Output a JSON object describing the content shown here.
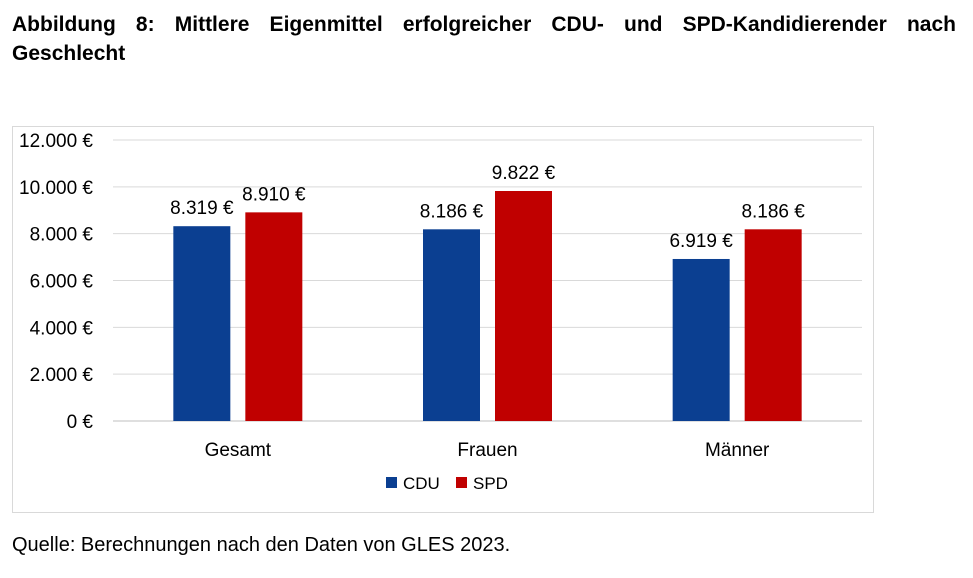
{
  "figure": {
    "title": "Abbildung 8: Mittlere Eigenmittel erfolgreicher CDU- und SPD-Kandidierender nach Geschlecht",
    "source": "Quelle: Berechnungen nach den Daten von GLES 2023."
  },
  "chart_data": {
    "type": "bar",
    "categories": [
      "Gesamt",
      "Frauen",
      "Männer"
    ],
    "series": [
      {
        "name": "CDU",
        "color": "#0b3f91",
        "values": [
          8319,
          8186,
          6919
        ],
        "labels": [
          "8.319 €",
          "8.186 €",
          "6.919 €"
        ]
      },
      {
        "name": "SPD",
        "color": "#c00000",
        "values": [
          8910,
          9822,
          8186
        ],
        "labels": [
          "8.910 €",
          "9.822 €",
          "8.186 €"
        ]
      }
    ],
    "ylim": [
      0,
      12000
    ],
    "yticks": [
      0,
      2000,
      4000,
      6000,
      8000,
      10000,
      12000
    ],
    "ytick_labels": [
      "0 €",
      "2.000 €",
      "4.000 €",
      "6.000 €",
      "8.000 €",
      "10.000 €",
      "12.000 €"
    ],
    "grid": true,
    "legend_position": "bottom"
  }
}
